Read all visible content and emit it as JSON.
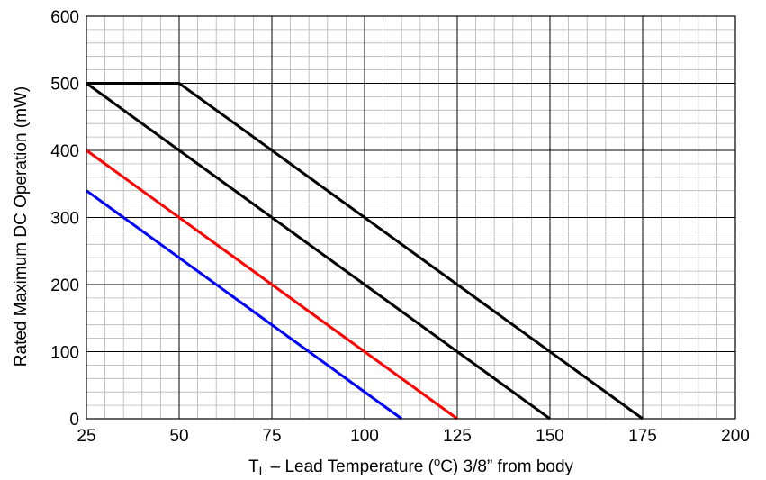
{
  "chart_data": {
    "type": "line",
    "xlabel": {
      "sym": "T",
      "sub": "L",
      "rest_a": " – Lead Temperature (",
      "sup": "o",
      "rest_b": "C) 3/8” from body"
    },
    "ylabel": "Rated Maximum DC Operation (mW)",
    "xlim": [
      25,
      200
    ],
    "ylim": [
      0,
      600
    ],
    "xticks": [
      25,
      50,
      75,
      100,
      125,
      150,
      175,
      200
    ],
    "yticks": [
      0,
      100,
      200,
      300,
      400,
      500,
      600
    ],
    "x_minor_step": 5,
    "y_minor_step": 20,
    "grid": true,
    "legend": "none",
    "series": [
      {
        "color": "#000000",
        "x": [
          25,
          50,
          175
        ],
        "y": [
          500,
          500,
          0
        ]
      },
      {
        "color": "#000000",
        "x": [
          25,
          150
        ],
        "y": [
          500,
          0
        ]
      },
      {
        "color": "#ff0000",
        "x": [
          25,
          125
        ],
        "y": [
          400,
          0
        ]
      },
      {
        "color": "#0000ff",
        "x": [
          25,
          110
        ],
        "y": [
          340,
          0
        ]
      }
    ]
  }
}
